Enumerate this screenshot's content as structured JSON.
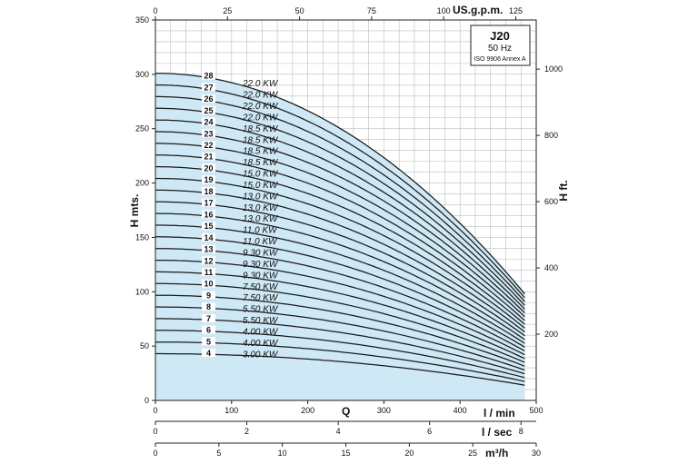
{
  "chart_data": {
    "type": "line",
    "title": "J20",
    "subtitle": [
      "50 Hz",
      "ISO 9906 Annex A"
    ],
    "ylabel": "H mts.",
    "ylabel_right": "H ft.",
    "xlabel": "Q",
    "xunit": "l / min",
    "top_axis_label": "US.g.p.m.",
    "lps_label": "l / sec",
    "m3h_label": "m³/h",
    "xlim": [
      0,
      500
    ],
    "ylim": [
      0,
      350
    ],
    "x_ticks": [
      "0",
      "100",
      "200",
      "300",
      "400",
      "500"
    ],
    "y_ticks": [
      "0",
      "50",
      "100",
      "150",
      "200",
      "250",
      "300",
      "350"
    ],
    "top_ticks": [
      "0",
      "25",
      "50",
      "75",
      "100",
      "125"
    ],
    "right_ticks": [
      "200",
      "400",
      "600",
      "800",
      "1000"
    ],
    "lps_ticks": [
      "0",
      "2",
      "4",
      "6",
      "8"
    ],
    "m3h_ticks": [
      "0",
      "5",
      "10",
      "15",
      "20",
      "25",
      "30"
    ],
    "grid": true,
    "shutoff_head_per_stage": 10.75,
    "end_head_per_stage": 3.5,
    "max_flow": 485,
    "series": [
      {
        "stage": "4",
        "kw": "3.00 KW"
      },
      {
        "stage": "5",
        "kw": "4.00 KW"
      },
      {
        "stage": "6",
        "kw": "4.00 KW"
      },
      {
        "stage": "7",
        "kw": "5.50 KW"
      },
      {
        "stage": "8",
        "kw": "5.50 KW"
      },
      {
        "stage": "9",
        "kw": "7.50 KW"
      },
      {
        "stage": "10",
        "kw": "7.50 KW"
      },
      {
        "stage": "11",
        "kw": "9.30 KW"
      },
      {
        "stage": "12",
        "kw": "9.30 KW"
      },
      {
        "stage": "13",
        "kw": "9.30 KW"
      },
      {
        "stage": "14",
        "kw": "11.0 KW"
      },
      {
        "stage": "15",
        "kw": "11.0 KW"
      },
      {
        "stage": "16",
        "kw": "13.0 KW"
      },
      {
        "stage": "17",
        "kw": "13.0 KW"
      },
      {
        "stage": "18",
        "kw": "13.0 KW"
      },
      {
        "stage": "19",
        "kw": "15.0 KW"
      },
      {
        "stage": "20",
        "kw": "15.0 KW"
      },
      {
        "stage": "21",
        "kw": "18.5 KW"
      },
      {
        "stage": "22",
        "kw": "18.5 KW"
      },
      {
        "stage": "23",
        "kw": "18.5 KW"
      },
      {
        "stage": "24",
        "kw": "18.5 KW"
      },
      {
        "stage": "25",
        "kw": "22.0 KW"
      },
      {
        "stage": "26",
        "kw": "22.0 KW"
      },
      {
        "stage": "27",
        "kw": "22.0 KW"
      },
      {
        "stage": "28",
        "kw": null
      }
    ],
    "top_kw_label": "22.0 KW",
    "colors": {
      "fill": "#cfe8f5",
      "curve": "#1a1a1a",
      "grid": "#b9bec3"
    }
  }
}
